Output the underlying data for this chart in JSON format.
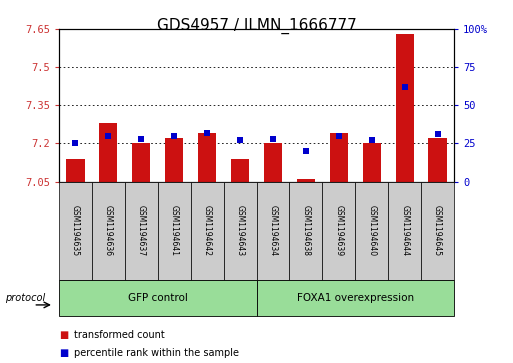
{
  "title": "GDS4957 / ILMN_1666777",
  "samples": [
    "GSM1194635",
    "GSM1194636",
    "GSM1194637",
    "GSM1194641",
    "GSM1194642",
    "GSM1194643",
    "GSM1194634",
    "GSM1194638",
    "GSM1194639",
    "GSM1194640",
    "GSM1194644",
    "GSM1194645"
  ],
  "red_values": [
    7.14,
    7.28,
    7.2,
    7.22,
    7.24,
    7.14,
    7.2,
    7.06,
    7.24,
    7.2,
    7.63,
    7.22
  ],
  "blue_values": [
    25,
    30,
    28,
    30,
    32,
    27,
    28,
    20,
    30,
    27,
    62,
    31
  ],
  "ylim_left": [
    7.05,
    7.65
  ],
  "ylim_right": [
    0,
    100
  ],
  "yticks_left": [
    7.05,
    7.2,
    7.35,
    7.5,
    7.65
  ],
  "yticks_right": [
    0,
    25,
    50,
    75,
    100
  ],
  "ytick_labels_left": [
    "7.05",
    "7.2",
    "7.35",
    "7.5",
    "7.65"
  ],
  "ytick_labels_right": [
    "0",
    "25",
    "50",
    "75",
    "100%"
  ],
  "bar_color": "#cc1111",
  "dot_color": "#0000cc",
  "bar_bottom": 7.05,
  "group1_label": "GFP control",
  "group2_label": "FOXA1 overexpression",
  "group1_indices": [
    0,
    1,
    2,
    3,
    4,
    5
  ],
  "group2_indices": [
    6,
    7,
    8,
    9,
    10,
    11
  ],
  "protocol_label": "protocol",
  "legend_red": "transformed count",
  "legend_blue": "percentile rank within the sample",
  "grid_color": "#000000",
  "bg_color": "#ffffff",
  "group_bg_color": "#99dd99",
  "sample_bg_color": "#cccccc",
  "title_fontsize": 11,
  "tick_fontsize": 7.5
}
